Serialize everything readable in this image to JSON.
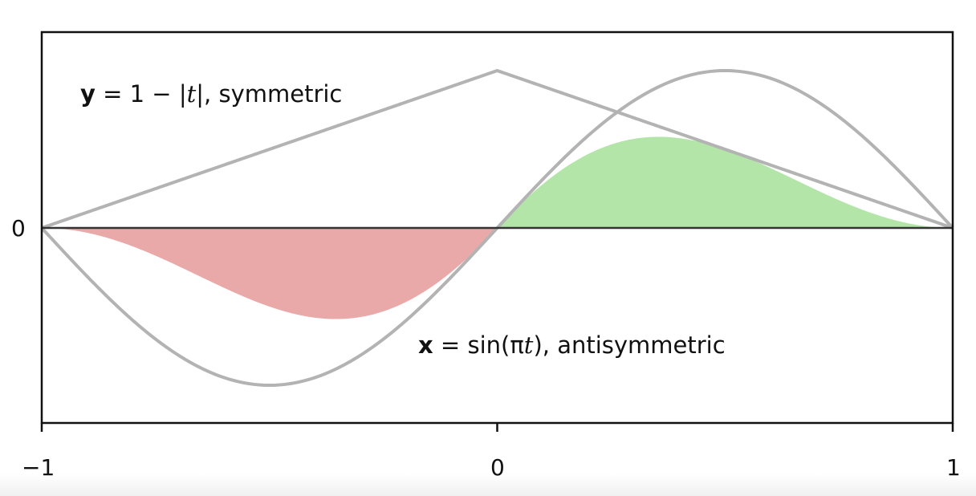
{
  "chart_data": {
    "type": "line",
    "xlim": [
      -1,
      1
    ],
    "ylim": [
      -1,
      1
    ],
    "x_ticks": [
      "−1",
      "0",
      "1"
    ],
    "y_ticks": [
      "0"
    ],
    "grid": false,
    "series": [
      {
        "formula": "1 - |t|",
        "color": "#b3b3b3"
      },
      {
        "formula": "sin(pi t)",
        "color": "#b3b3b3"
      }
    ],
    "fills": [
      {
        "description": "product x*y",
        "range": [
          -1,
          0
        ],
        "color": "#eaa9a9"
      },
      {
        "description": "product x*y",
        "range": [
          0,
          1
        ],
        "color": "#b3e5a9"
      }
    ],
    "annotations": {
      "y_label": {
        "bold": "y",
        "eq": " = 1 − |",
        "var": "t",
        "rest": "|, symmetric"
      },
      "x_label": {
        "bold": "x",
        "eq": " = sin(π",
        "var": "t",
        "rest": "), antisymmetric"
      }
    }
  }
}
